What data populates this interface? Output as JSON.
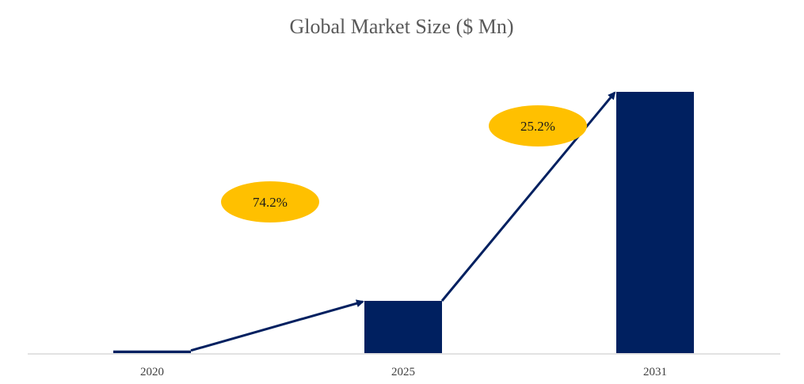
{
  "chart_data": {
    "type": "bar",
    "title": "Global Market Size ($ Mn)",
    "xlabel": "",
    "ylabel": "",
    "categories": [
      "2020",
      "2025",
      "2031"
    ],
    "values": [
      1,
      20,
      100
    ],
    "ylim": [
      0,
      100
    ],
    "grid": false,
    "legend": "none",
    "bar_color": "#002060",
    "arrow_color": "#002060",
    "axis_color": "#d9d9d9",
    "growth_annotations": [
      {
        "label": "74.2%",
        "from": "2020",
        "to": "2025",
        "color": "#ffc000"
      },
      {
        "label": "25.2%",
        "from": "2025",
        "to": "2031",
        "color": "#ffc000"
      }
    ]
  }
}
